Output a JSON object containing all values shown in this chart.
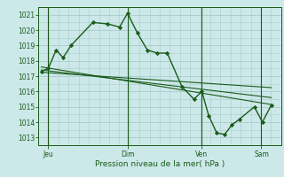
{
  "background_color": "#cce8e8",
  "grid_color": "#aacccc",
  "line_color": "#1a5c1a",
  "marker_color": "#1a5c1a",
  "ylabel_ticks": [
    1013,
    1014,
    1015,
    1016,
    1017,
    1018,
    1019,
    1020,
    1021
  ],
  "ylim": [
    1012.5,
    1021.5
  ],
  "xlabel": "Pression niveau de la mer( hPa )",
  "xtick_labels": [
    "Jeu",
    "Dim",
    "Ven",
    "Sam"
  ],
  "xtick_positions": [
    10,
    90,
    165,
    225
  ],
  "day_vlines": [
    10,
    90,
    165,
    225
  ],
  "main_line_x": [
    3,
    10,
    18,
    25,
    33,
    55,
    70,
    82,
    90,
    100,
    110,
    120,
    130,
    145,
    157,
    165,
    172,
    180,
    188,
    195,
    203,
    218,
    226,
    235
  ],
  "main_line_y": [
    1017.3,
    1017.5,
    1018.7,
    1018.2,
    1019.0,
    1020.5,
    1020.4,
    1020.2,
    1021.1,
    1019.8,
    1018.7,
    1018.5,
    1018.5,
    1016.3,
    1015.5,
    1016.0,
    1014.4,
    1013.3,
    1013.2,
    1013.8,
    1014.2,
    1015.0,
    1014.0,
    1015.1
  ],
  "flat_lines": [
    {
      "x": [
        3,
        235
      ],
      "y": [
        1017.6,
        1015.15
      ]
    },
    {
      "x": [
        3,
        235
      ],
      "y": [
        1017.4,
        1015.6
      ]
    },
    {
      "x": [
        3,
        235
      ],
      "y": [
        1017.25,
        1016.25
      ]
    }
  ],
  "xlim": [
    0,
    245
  ]
}
